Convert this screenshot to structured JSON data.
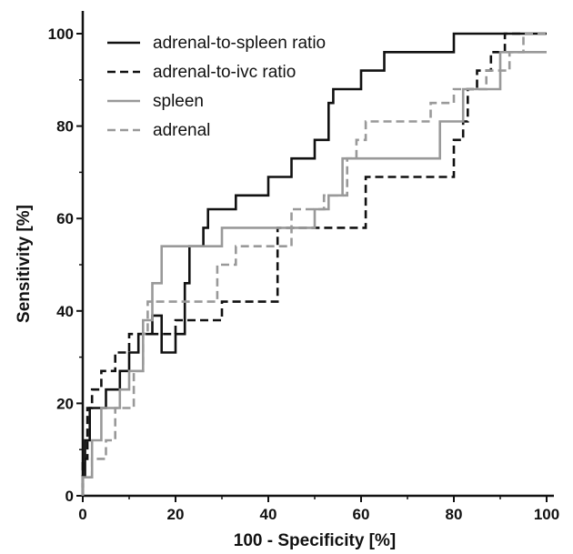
{
  "chart_data": {
    "type": "line",
    "title": "",
    "xlabel": "100 - Specificity [%]",
    "ylabel": "Sensitivity [%]",
    "xlim": [
      0,
      100
    ],
    "ylim": [
      0,
      100
    ],
    "xticks": [
      0,
      20,
      40,
      60,
      80,
      100
    ],
    "yticks": [
      0,
      20,
      40,
      60,
      80,
      100
    ],
    "grid": false,
    "legend": "top-left",
    "series": [
      {
        "name": "adrenal-to-spleen ratio",
        "color": "#111111",
        "dash": "solid",
        "points": [
          [
            0,
            0
          ],
          [
            0,
            4
          ],
          [
            0.5,
            4
          ],
          [
            0.5,
            12
          ],
          [
            1.5,
            12
          ],
          [
            1.5,
            19
          ],
          [
            5,
            19
          ],
          [
            5,
            23
          ],
          [
            8,
            23
          ],
          [
            8,
            27
          ],
          [
            10,
            27
          ],
          [
            10,
            31
          ],
          [
            12,
            31
          ],
          [
            12,
            35
          ],
          [
            15,
            35
          ],
          [
            15,
            39
          ],
          [
            17,
            39
          ],
          [
            17,
            31
          ],
          [
            20,
            31
          ],
          [
            20,
            35
          ],
          [
            22,
            35
          ],
          [
            22,
            46
          ],
          [
            23,
            46
          ],
          [
            23,
            54
          ],
          [
            26,
            54
          ],
          [
            26,
            58
          ],
          [
            27,
            58
          ],
          [
            27,
            62
          ],
          [
            33,
            62
          ],
          [
            33,
            65
          ],
          [
            40,
            65
          ],
          [
            40,
            69
          ],
          [
            45,
            69
          ],
          [
            45,
            73
          ],
          [
            50,
            73
          ],
          [
            50,
            77
          ],
          [
            53,
            77
          ],
          [
            53,
            85
          ],
          [
            54,
            85
          ],
          [
            54,
            88
          ],
          [
            60,
            88
          ],
          [
            60,
            92
          ],
          [
            65,
            92
          ],
          [
            65,
            96
          ],
          [
            80,
            96
          ],
          [
            80,
            100
          ],
          [
            100,
            100
          ]
        ]
      },
      {
        "name": "adrenal-to-ivc ratio",
        "color": "#111111",
        "dash": "dashed",
        "points": [
          [
            0,
            0
          ],
          [
            0,
            8
          ],
          [
            1,
            8
          ],
          [
            1,
            19
          ],
          [
            2,
            19
          ],
          [
            2,
            23
          ],
          [
            4,
            23
          ],
          [
            4,
            27
          ],
          [
            7,
            27
          ],
          [
            7,
            31
          ],
          [
            10,
            31
          ],
          [
            10,
            35
          ],
          [
            20,
            35
          ],
          [
            20,
            38
          ],
          [
            30,
            38
          ],
          [
            30,
            42
          ],
          [
            42,
            42
          ],
          [
            42,
            58
          ],
          [
            61,
            58
          ],
          [
            61,
            69
          ],
          [
            80,
            69
          ],
          [
            80,
            77
          ],
          [
            82,
            77
          ],
          [
            82,
            81
          ],
          [
            83,
            81
          ],
          [
            83,
            88
          ],
          [
            85,
            88
          ],
          [
            85,
            92
          ],
          [
            88,
            92
          ],
          [
            88,
            96
          ],
          [
            91,
            96
          ],
          [
            91,
            100
          ],
          [
            100,
            100
          ]
        ]
      },
      {
        "name": "spleen",
        "color": "#999999",
        "dash": "solid",
        "points": [
          [
            0,
            0
          ],
          [
            0,
            4
          ],
          [
            2,
            4
          ],
          [
            2,
            12
          ],
          [
            4,
            12
          ],
          [
            4,
            19
          ],
          [
            8,
            19
          ],
          [
            8,
            23
          ],
          [
            10,
            23
          ],
          [
            10,
            27
          ],
          [
            13,
            27
          ],
          [
            13,
            38
          ],
          [
            15,
            38
          ],
          [
            15,
            46
          ],
          [
            17,
            46
          ],
          [
            17,
            54
          ],
          [
            30,
            54
          ],
          [
            30,
            58
          ],
          [
            50,
            58
          ],
          [
            50,
            62
          ],
          [
            53,
            62
          ],
          [
            53,
            65
          ],
          [
            56,
            65
          ],
          [
            56,
            73
          ],
          [
            77,
            73
          ],
          [
            77,
            81
          ],
          [
            82,
            81
          ],
          [
            82,
            88
          ],
          [
            90,
            88
          ],
          [
            90,
            96
          ],
          [
            100,
            96
          ]
        ]
      },
      {
        "name": "adrenal",
        "color": "#999999",
        "dash": "dashed",
        "points": [
          [
            0,
            0
          ],
          [
            0,
            4
          ],
          [
            2,
            4
          ],
          [
            2,
            8
          ],
          [
            5,
            8
          ],
          [
            5,
            12
          ],
          [
            7,
            12
          ],
          [
            7,
            19
          ],
          [
            11,
            19
          ],
          [
            11,
            27
          ],
          [
            13,
            27
          ],
          [
            13,
            35
          ],
          [
            14,
            35
          ],
          [
            14,
            42
          ],
          [
            29,
            42
          ],
          [
            29,
            50
          ],
          [
            33,
            50
          ],
          [
            33,
            54
          ],
          [
            45,
            54
          ],
          [
            45,
            62
          ],
          [
            52,
            62
          ],
          [
            52,
            65
          ],
          [
            57,
            65
          ],
          [
            57,
            73
          ],
          [
            59,
            73
          ],
          [
            59,
            77
          ],
          [
            61,
            77
          ],
          [
            61,
            81
          ],
          [
            75,
            81
          ],
          [
            75,
            85
          ],
          [
            80,
            85
          ],
          [
            80,
            88
          ],
          [
            87,
            88
          ],
          [
            87,
            92
          ],
          [
            92,
            92
          ],
          [
            92,
            96
          ],
          [
            95,
            96
          ],
          [
            95,
            100
          ],
          [
            100,
            100
          ]
        ]
      }
    ]
  }
}
